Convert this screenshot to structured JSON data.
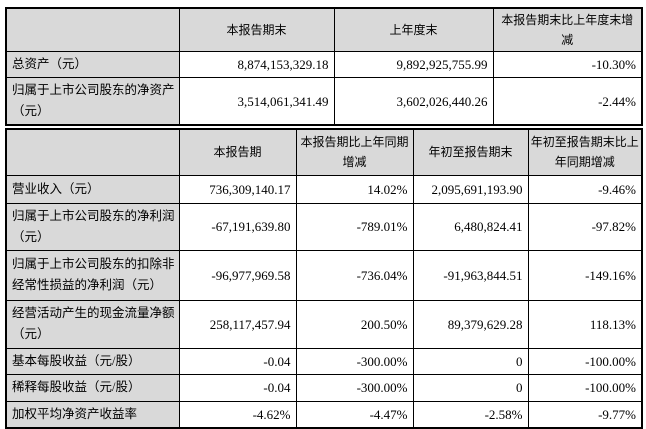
{
  "colors": {
    "header_bg": "#d9d9d9",
    "cell_bg": "#ffffff",
    "border": "#000000",
    "text": "#000000"
  },
  "table1": {
    "headers": [
      "",
      "本报告期末",
      "上年度末",
      "本报告期末比上年度末增减"
    ],
    "rows": [
      {
        "label": "总资产（元）",
        "values": [
          "8,874,153,329.18",
          "9,892,925,755.99",
          "-10.30%"
        ]
      },
      {
        "label": "归属于上市公司股东的净资产（元）",
        "values": [
          "3,514,061,341.49",
          "3,602,026,440.26",
          "-2.44%"
        ]
      }
    ]
  },
  "table2": {
    "headers": [
      "",
      "本报告期",
      "本报告期比上年同期增减",
      "年初至报告期末",
      "年初至报告期末比上年同期增减"
    ],
    "rows": [
      {
        "label": "营业收入（元）",
        "values": [
          "736,309,140.17",
          "14.02%",
          "2,095,691,193.90",
          "-9.46%"
        ]
      },
      {
        "label": "归属于上市公司股东的净利润（元）",
        "values": [
          "-67,191,639.80",
          "-789.01%",
          "6,480,824.41",
          "-97.82%"
        ]
      },
      {
        "label": "归属于上市公司股东的扣除非经常性损益的净利润（元）",
        "values": [
          "-96,977,969.58",
          "-736.04%",
          "-91,963,844.51",
          "-149.16%"
        ]
      },
      {
        "label": "经营活动产生的现金流量净额（元）",
        "values": [
          "258,117,457.94",
          "200.50%",
          "89,379,629.28",
          "118.13%"
        ]
      },
      {
        "label": "基本每股收益（元/股）",
        "values": [
          "-0.04",
          "-300.00%",
          "0",
          "-100.00%"
        ]
      },
      {
        "label": "稀释每股收益（元/股）",
        "values": [
          "-0.04",
          "-300.00%",
          "0",
          "-100.00%"
        ]
      },
      {
        "label": "加权平均净资产收益率",
        "values": [
          "-4.62%",
          "-4.47%",
          "-2.58%",
          "-9.77%"
        ]
      }
    ]
  }
}
